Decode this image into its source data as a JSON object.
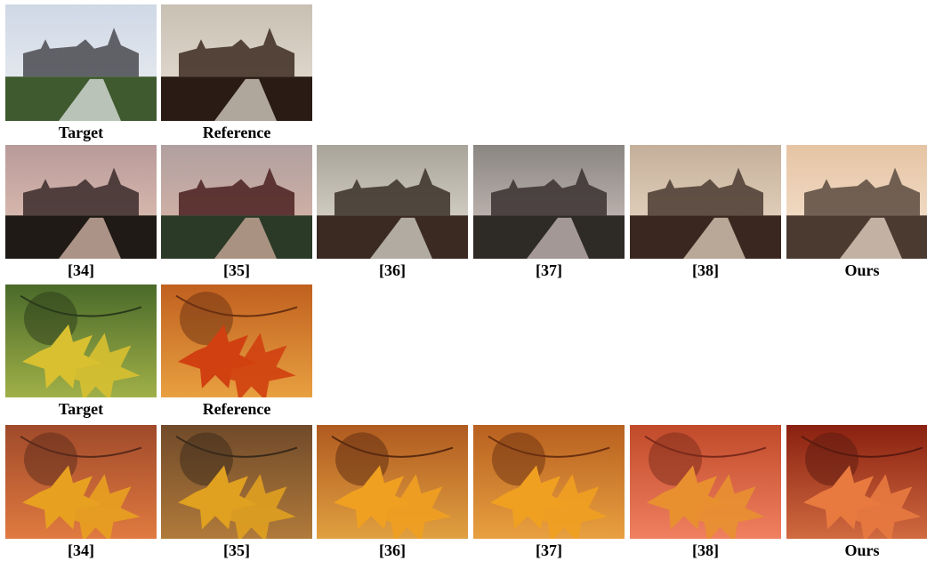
{
  "figure": {
    "rows": [
      [
        "Target",
        "Reference"
      ],
      [
        "[34]",
        "[35]",
        "[36]",
        "[37]",
        "[38]",
        "Ours"
      ],
      [
        "Target",
        "Reference"
      ],
      [
        "[34]",
        "[35]",
        "[36]",
        "[37]",
        "[38]",
        "Ours"
      ]
    ]
  }
}
